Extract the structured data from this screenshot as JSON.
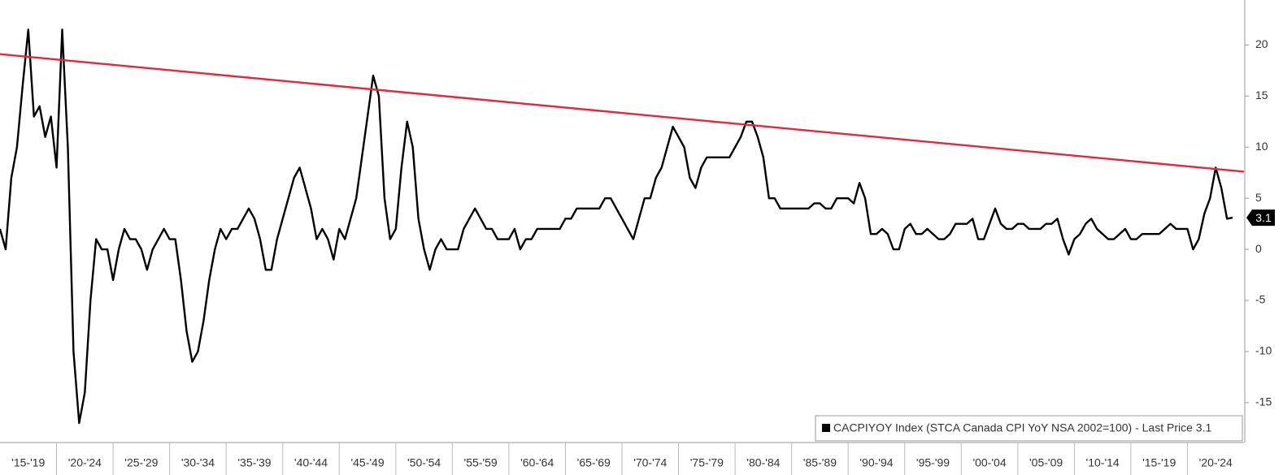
{
  "chart_data": {
    "type": "line",
    "series": [
      {
        "name": "CACPIYOY Index (STCA Canada CPI YoY NSA 2002=100) - Last Price 3.1",
        "color": "#000000",
        "x": [
          1915,
          1915.5,
          1916,
          1916.5,
          1917,
          1917.5,
          1918,
          1918.5,
          1919,
          1919.5,
          1920,
          1920.5,
          1921,
          1921.5,
          1922,
          1922.5,
          1923,
          1923.5,
          1924,
          1924.5,
          1925,
          1925.5,
          1926,
          1926.5,
          1927,
          1927.5,
          1928,
          1928.5,
          1929,
          1929.5,
          1930,
          1930.5,
          1931,
          1931.5,
          1932,
          1932.5,
          1933,
          1933.5,
          1934,
          1934.5,
          1935,
          1935.5,
          1936,
          1936.5,
          1937,
          1937.5,
          1938,
          1938.5,
          1939,
          1939.5,
          1940,
          1940.5,
          1941,
          1941.5,
          1942,
          1942.5,
          1943,
          1943.5,
          1944,
          1944.5,
          1945,
          1945.5,
          1946,
          1946.5,
          1947,
          1947.5,
          1948,
          1948.5,
          1949,
          1949.5,
          1950,
          1950.5,
          1951,
          1951.5,
          1952,
          1952.5,
          1953,
          1953.5,
          1954,
          1954.5,
          1955,
          1955.5,
          1956,
          1956.5,
          1957,
          1957.5,
          1958,
          1958.5,
          1959,
          1959.5,
          1960,
          1960.5,
          1961,
          1961.5,
          1962,
          1962.5,
          1963,
          1963.5,
          1964,
          1964.5,
          1965,
          1965.5,
          1966,
          1966.5,
          1967,
          1967.5,
          1968,
          1968.5,
          1969,
          1969.5,
          1970,
          1970.5,
          1971,
          1971.5,
          1972,
          1972.5,
          1973,
          1973.5,
          1974,
          1974.5,
          1975,
          1975.5,
          1976,
          1976.5,
          1977,
          1977.5,
          1978,
          1978.5,
          1979,
          1979.5,
          1980,
          1980.5,
          1981,
          1981.5,
          1982,
          1982.5,
          1983,
          1983.5,
          1984,
          1984.5,
          1985,
          1985.5,
          1986,
          1986.5,
          1987,
          1987.5,
          1988,
          1988.5,
          1989,
          1989.5,
          1990,
          1990.5,
          1991,
          1991.5,
          1992,
          1992.5,
          1993,
          1993.5,
          1994,
          1994.5,
          1995,
          1995.5,
          1996,
          1996.5,
          1997,
          1997.5,
          1998,
          1998.5,
          1999,
          1999.5,
          2000,
          2000.5,
          2001,
          2001.5,
          2002,
          2002.5,
          2003,
          2003.5,
          2004,
          2004.5,
          2005,
          2005.5,
          2006,
          2006.5,
          2007,
          2007.5,
          2008,
          2008.5,
          2009,
          2009.5,
          2010,
          2010.5,
          2011,
          2011.5,
          2012,
          2012.5,
          2013,
          2013.5,
          2014,
          2014.5,
          2015,
          2015.5,
          2016,
          2016.5,
          2017,
          2017.5,
          2018,
          2018.5,
          2019,
          2019.5,
          2020,
          2020.5,
          2021,
          2021.5,
          2022,
          2022.5,
          2023,
          2023.5,
          2024
        ],
        "values": [
          2,
          0,
          7,
          10,
          16,
          21.5,
          13,
          14,
          11,
          13,
          8,
          21.5,
          10,
          -10,
          -17,
          -14,
          -5,
          1,
          0,
          0,
          -3,
          0,
          2,
          1,
          1,
          0,
          -2,
          0,
          1,
          2,
          1,
          1,
          -3,
          -8,
          -11,
          -10,
          -7,
          -3,
          0,
          2,
          1,
          2,
          2,
          3,
          4,
          3,
          1,
          -2,
          -2,
          1,
          3,
          5,
          7,
          8,
          6,
          4,
          1,
          2,
          1,
          -1,
          2,
          1,
          3,
          5,
          9,
          13,
          17,
          15,
          5,
          1,
          2,
          8,
          12.5,
          10,
          3,
          0,
          -2,
          0,
          1,
          0,
          0,
          0,
          2,
          3,
          4,
          3,
          2,
          2,
          1,
          1,
          1,
          2,
          0,
          1,
          1,
          2,
          2,
          2,
          2,
          2,
          3,
          3,
          4,
          4,
          4,
          4,
          4,
          5,
          5,
          4,
          3,
          2,
          1,
          3,
          5,
          5,
          7,
          8,
          10,
          12,
          11,
          10,
          7,
          6,
          8,
          9,
          9,
          9,
          9,
          9,
          10,
          11,
          12.5,
          12.5,
          11,
          9,
          5,
          5,
          4,
          4,
          4,
          4,
          4,
          4,
          4.5,
          4.5,
          4,
          4,
          5,
          5,
          5,
          4.5,
          6.5,
          5,
          1.5,
          1.5,
          2,
          1.5,
          0,
          0,
          2,
          2.5,
          1.5,
          1.5,
          2,
          1.5,
          1,
          1,
          1.5,
          2.5,
          2.5,
          2.5,
          3,
          1,
          1,
          2.5,
          4,
          2.5,
          2,
          2,
          2.5,
          2.5,
          2,
          2,
          2,
          2.5,
          2.5,
          3,
          1,
          -0.5,
          1,
          1.5,
          2.5,
          3,
          2,
          1.5,
          1,
          1,
          1.5,
          2,
          1,
          1,
          1.5,
          1.5,
          1.5,
          1.5,
          2,
          2.5,
          2,
          2,
          2,
          0,
          1,
          3.5,
          5,
          8,
          6,
          3,
          3.1
        ]
      }
    ],
    "trendline": {
      "x": [
        1915,
        2025
      ],
      "values": [
        19.1,
        7.6
      ],
      "color": "#e8253c"
    },
    "last_price": 3.1,
    "xlim": [
      1915,
      2025
    ],
    "xticks": [
      {
        "value": 1915,
        "label": "'15-'19"
      },
      {
        "value": 1920,
        "label": "'20-'24"
      },
      {
        "value": 1925,
        "label": "'25-'29"
      },
      {
        "value": 1930,
        "label": "'30-'34"
      },
      {
        "value": 1935,
        "label": "'35-'39"
      },
      {
        "value": 1940,
        "label": "'40-'44"
      },
      {
        "value": 1945,
        "label": "'45-'49"
      },
      {
        "value": 1950,
        "label": "'50-'54"
      },
      {
        "value": 1955,
        "label": "'55-'59"
      },
      {
        "value": 1960,
        "label": "'60-'64"
      },
      {
        "value": 1965,
        "label": "'65-'69"
      },
      {
        "value": 1970,
        "label": "'70-'74"
      },
      {
        "value": 1975,
        "label": "'75-'79"
      },
      {
        "value": 1980,
        "label": "'80-'84"
      },
      {
        "value": 1985,
        "label": "'85-'89"
      },
      {
        "value": 1990,
        "label": "'90-'94"
      },
      {
        "value": 1995,
        "label": "'95-'99"
      },
      {
        "value": 2000,
        "label": "'00-'04"
      },
      {
        "value": 2005,
        "label": "'05-'09"
      },
      {
        "value": 2010,
        "label": "'10-'14"
      },
      {
        "value": 2015,
        "label": "'15-'19"
      },
      {
        "value": 2020,
        "label": "'20-'24"
      }
    ],
    "ylim": [
      -18.9,
      24.4
    ],
    "yticks": [
      -15,
      -10,
      -5,
      0,
      5,
      10,
      15,
      20
    ]
  }
}
